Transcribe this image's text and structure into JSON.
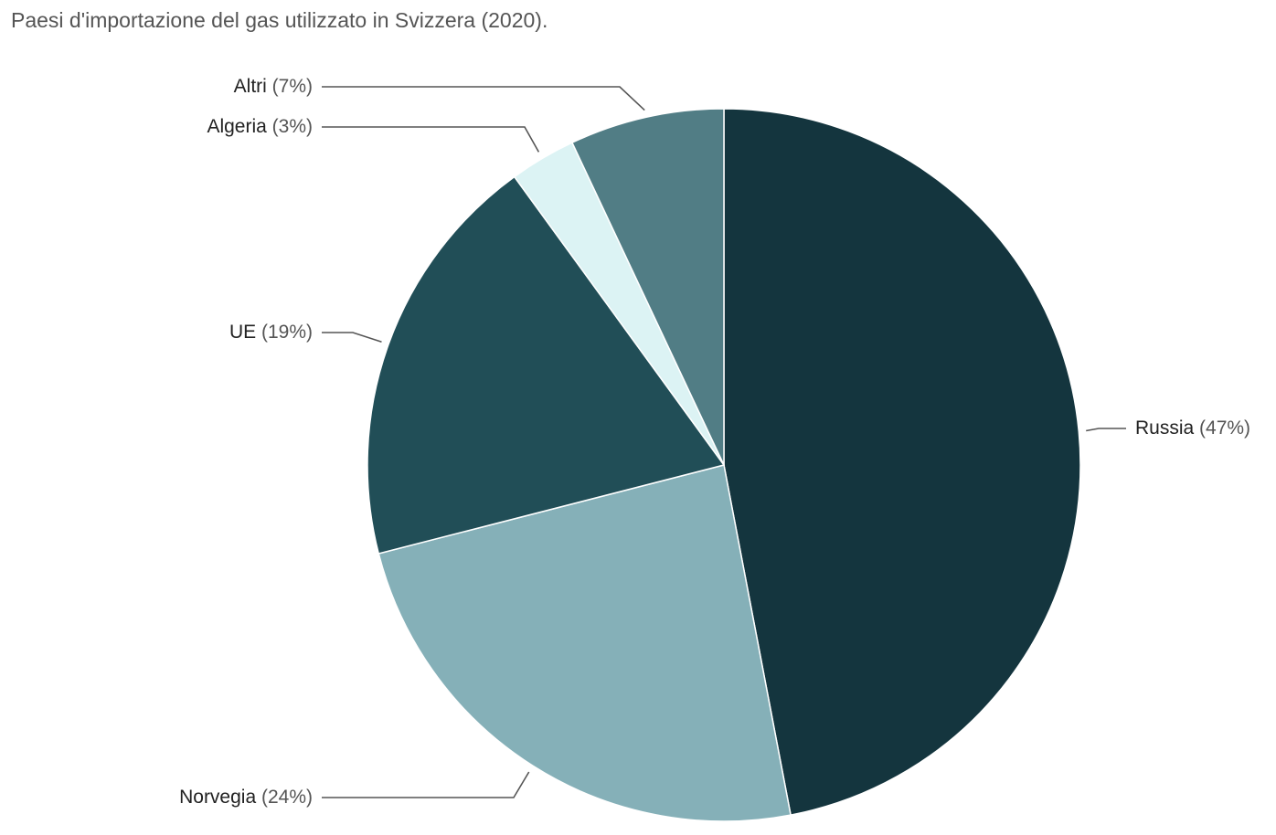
{
  "chart_data": {
    "type": "pie",
    "title": "Paesi d'importazione del gas utilizzato in Svizzera (2020).",
    "start": "12 o'clock",
    "direction": "clockwise",
    "slices": [
      {
        "name": "Russia",
        "value": 47,
        "label": "(47%)",
        "color": "#14353e",
        "label_side": "right"
      },
      {
        "name": "Norvegia",
        "value": 24,
        "label": "(24%)",
        "color": "#85b0b8",
        "label_side": "left"
      },
      {
        "name": "UE",
        "value": 19,
        "label": "(19%)",
        "color": "#214e57",
        "label_side": "left"
      },
      {
        "name": "Algeria",
        "value": 3,
        "label": "(3%)",
        "color": "#dcf3f4",
        "label_side": "left"
      },
      {
        "name": "Altri",
        "value": 7,
        "label": "(7%)",
        "color": "#517d85",
        "label_side": "left"
      }
    ]
  }
}
